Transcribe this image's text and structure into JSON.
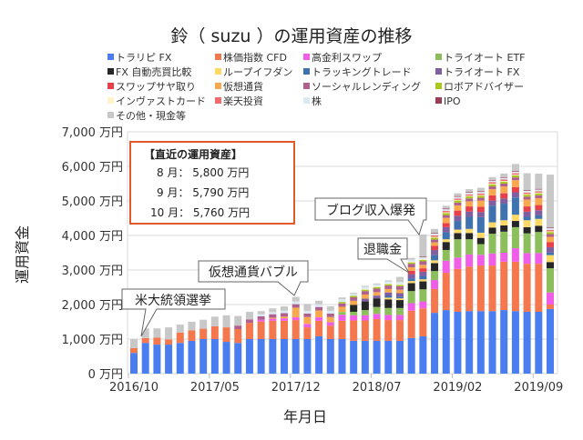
{
  "chart_data": {
    "type": "bar",
    "stacked": true,
    "title": "鈴（ suzu ）の運用資産の推移",
    "xlabel": "年月日",
    "ylabel": "運用資金",
    "ylim": [
      0,
      7000
    ],
    "yticks": [
      "0 万円",
      "1,000 万円",
      "2,000 万円",
      "3,000 万円",
      "4,000 万円",
      "5,000 万円",
      "6,000 万円",
      "7,000 万円"
    ],
    "xtick_labels": [
      "2016/10",
      "2017/05",
      "2017/12",
      "2018/07",
      "2019/02",
      "2019/09"
    ],
    "grid": true,
    "legend_position": "top",
    "categories": [
      "2016/10",
      "2016/11",
      "2016/12",
      "2017/01",
      "2017/02",
      "2017/03",
      "2017/04",
      "2017/05",
      "2017/06",
      "2017/07",
      "2017/08",
      "2017/09",
      "2017/10",
      "2017/11",
      "2017/12",
      "2018/01",
      "2018/02",
      "2018/03",
      "2018/04",
      "2018/05",
      "2018/06",
      "2018/07",
      "2018/08",
      "2018/09",
      "2018/10",
      "2018/11",
      "2018/12",
      "2019/01",
      "2019/02",
      "2019/03",
      "2019/04",
      "2019/05",
      "2019/06",
      "2019/07",
      "2019/08",
      "2019/09",
      "2019/10"
    ],
    "series": [
      {
        "name": "トラリピ FX",
        "color": "#4a7ef0",
        "values": [
          600,
          890,
          840,
          840,
          890,
          950,
          1000,
          1000,
          920,
          890,
          1000,
          1000,
          1000,
          1000,
          1000,
          1000,
          1080,
          1000,
          1000,
          950,
          950,
          950,
          950,
          950,
          1030,
          1080,
          1760,
          1840,
          1790,
          1810,
          1810,
          1810,
          1840,
          1810,
          1790,
          1790,
          1870
        ]
      },
      {
        "name": "株価指数 CFD",
        "color": "#f5774e",
        "values": [
          140,
          140,
          200,
          150,
          300,
          300,
          300,
          370,
          420,
          400,
          470,
          510,
          530,
          530,
          550,
          340,
          450,
          390,
          530,
          590,
          590,
          630,
          600,
          600,
          790,
          810,
          690,
          1080,
          1240,
          1290,
          1320,
          1320,
          1400,
          1430,
          1390,
          1390,
          130
        ]
      },
      {
        "name": "高金利スワップ",
        "color": "#f05ee8",
        "values": [
          0,
          0,
          0,
          0,
          0,
          0,
          0,
          0,
          0,
          0,
          0,
          50,
          60,
          70,
          80,
          100,
          100,
          100,
          175,
          150,
          150,
          150,
          150,
          150,
          220,
          200,
          260,
          350,
          330,
          350,
          310,
          350,
          260,
          390,
          310,
          310,
          350
        ]
      },
      {
        "name": "トライオート ETF",
        "color": "#8cbf5c",
        "values": [
          0,
          0,
          0,
          0,
          0,
          0,
          0,
          0,
          0,
          0,
          0,
          0,
          0,
          0,
          0,
          0,
          0,
          0,
          80,
          100,
          150,
          200,
          200,
          200,
          350,
          350,
          260,
          310,
          530,
          440,
          310,
          570,
          610,
          610,
          570,
          610,
          700
        ]
      },
      {
        "name": "FX 自動売買比較",
        "color": "#262626",
        "values": [
          0,
          0,
          0,
          0,
          0,
          0,
          0,
          0,
          0,
          0,
          0,
          0,
          0,
          0,
          0,
          0,
          0,
          0,
          0,
          200,
          250,
          250,
          250,
          230,
          230,
          230,
          230,
          230,
          180,
          180,
          180,
          180,
          180,
          180,
          180,
          180,
          180
        ]
      },
      {
        "name": "ループイフダン",
        "color": "#ffd966",
        "values": [
          0,
          0,
          0,
          0,
          0,
          0,
          0,
          0,
          0,
          0,
          0,
          0,
          0,
          0,
          0,
          0,
          0,
          0,
          0,
          0,
          0,
          0,
          50,
          50,
          60,
          60,
          80,
          80,
          100,
          120,
          150,
          150,
          150,
          180,
          200,
          200,
          200
        ]
      },
      {
        "name": "トラッキングトレード",
        "color": "#3f73b0",
        "values": [
          0,
          0,
          0,
          0,
          0,
          0,
          0,
          0,
          0,
          0,
          0,
          0,
          0,
          0,
          0,
          0,
          0,
          0,
          0,
          0,
          0,
          0,
          50,
          50,
          80,
          100,
          150,
          200,
          250,
          350,
          450,
          480,
          480,
          500,
          100,
          100,
          80
        ]
      },
      {
        "name": "トライオート FX",
        "color": "#7f5fa0",
        "values": [
          0,
          0,
          0,
          0,
          0,
          0,
          0,
          0,
          0,
          0,
          0,
          0,
          0,
          0,
          0,
          0,
          0,
          0,
          0,
          0,
          80,
          80,
          100,
          100,
          120,
          120,
          150,
          150,
          150,
          150,
          150,
          150,
          150,
          150,
          150,
          150,
          150
        ]
      },
      {
        "name": "スワップサヤ取り",
        "color": "#e8404a",
        "values": [
          0,
          0,
          0,
          0,
          0,
          0,
          0,
          0,
          0,
          0,
          0,
          0,
          0,
          0,
          0,
          0,
          0,
          0,
          0,
          0,
          0,
          0,
          0,
          0,
          100,
          100,
          120,
          120,
          150,
          150,
          150,
          150,
          150,
          150,
          150,
          150,
          150
        ]
      },
      {
        "name": "仮想通貨",
        "color": "#f8a94f",
        "values": [
          0,
          0,
          0,
          0,
          0,
          0,
          0,
          0,
          0,
          0,
          0,
          0,
          30,
          50,
          280,
          200,
          200,
          150,
          150,
          120,
          120,
          100,
          100,
          100,
          100,
          100,
          100,
          150,
          150,
          150,
          180,
          180,
          200,
          200,
          200,
          200,
          150
        ]
      },
      {
        "name": "ソーシャルレンディング",
        "color": "#b0608e",
        "values": [
          0,
          0,
          0,
          0,
          0,
          0,
          0,
          0,
          0,
          100,
          100,
          100,
          100,
          100,
          100,
          100,
          100,
          100,
          100,
          100,
          100,
          100,
          100,
          100,
          100,
          100,
          80,
          80,
          80,
          80,
          80,
          80,
          80,
          80,
          80,
          80,
          80
        ]
      },
      {
        "name": "ロボアドバイザー",
        "color": "#a8c81e",
        "values": [
          0,
          0,
          0,
          0,
          0,
          0,
          0,
          0,
          0,
          0,
          0,
          0,
          0,
          0,
          0,
          0,
          0,
          0,
          40,
          40,
          40,
          40,
          40,
          40,
          40,
          40,
          60,
          60,
          60,
          60,
          60,
          60,
          60,
          60,
          60,
          60,
          60
        ]
      },
      {
        "name": "インヴァストカード",
        "color": "#fff3cc",
        "values": [
          0,
          0,
          0,
          0,
          0,
          0,
          0,
          0,
          0,
          0,
          0,
          0,
          0,
          0,
          0,
          0,
          0,
          0,
          0,
          0,
          20,
          20,
          20,
          20,
          20,
          20,
          20,
          20,
          20,
          20,
          20,
          20,
          20,
          20,
          20,
          20,
          20
        ]
      },
      {
        "name": "楽天投資",
        "color": "#f56b6b",
        "values": [
          0,
          0,
          0,
          0,
          0,
          0,
          0,
          0,
          0,
          0,
          0,
          0,
          0,
          0,
          0,
          0,
          0,
          0,
          0,
          0,
          0,
          0,
          0,
          0,
          0,
          0,
          40,
          40,
          40,
          40,
          40,
          40,
          40,
          40,
          40,
          40,
          40
        ]
      },
      {
        "name": "株",
        "color": "#dbe9f3",
        "values": [
          0,
          0,
          0,
          0,
          0,
          0,
          0,
          0,
          0,
          0,
          0,
          60,
          60,
          70,
          80,
          80,
          80,
          80,
          80,
          60,
          60,
          60,
          60,
          60,
          60,
          60,
          60,
          50,
          50,
          50,
          50,
          50,
          50,
          50,
          50,
          50,
          50
        ]
      },
      {
        "name": "IPO",
        "color": "#9b3b54",
        "values": [
          0,
          0,
          0,
          0,
          0,
          0,
          0,
          0,
          0,
          0,
          0,
          0,
          0,
          0,
          0,
          0,
          0,
          0,
          0,
          0,
          0,
          0,
          0,
          0,
          0,
          20,
          20,
          20,
          20,
          20,
          20,
          20,
          20,
          20,
          20,
          20,
          20
        ]
      },
      {
        "name": "その他・現金等",
        "color": "#c8c8c8",
        "values": [
          260,
          280,
          270,
          350,
          230,
          250,
          260,
          280,
          350,
          280,
          220,
          90,
          110,
          130,
          130,
          200,
          100,
          130,
          50,
          30,
          30,
          30,
          30,
          150,
          50,
          640,
          110,
          80,
          80,
          80,
          100,
          80,
          100,
          200,
          490,
          440,
          1530
        ]
      }
    ],
    "annotations": [
      "米大統領選挙",
      "仮想通貨バブル",
      "ブログ収入爆発",
      "退職金"
    ],
    "summary_box": {
      "title": "【直近の運用資産】",
      "lines": [
        "8 月： 5,800 万円",
        "9 月： 5,790 万円",
        "10 月： 5,760 万円"
      ]
    }
  }
}
